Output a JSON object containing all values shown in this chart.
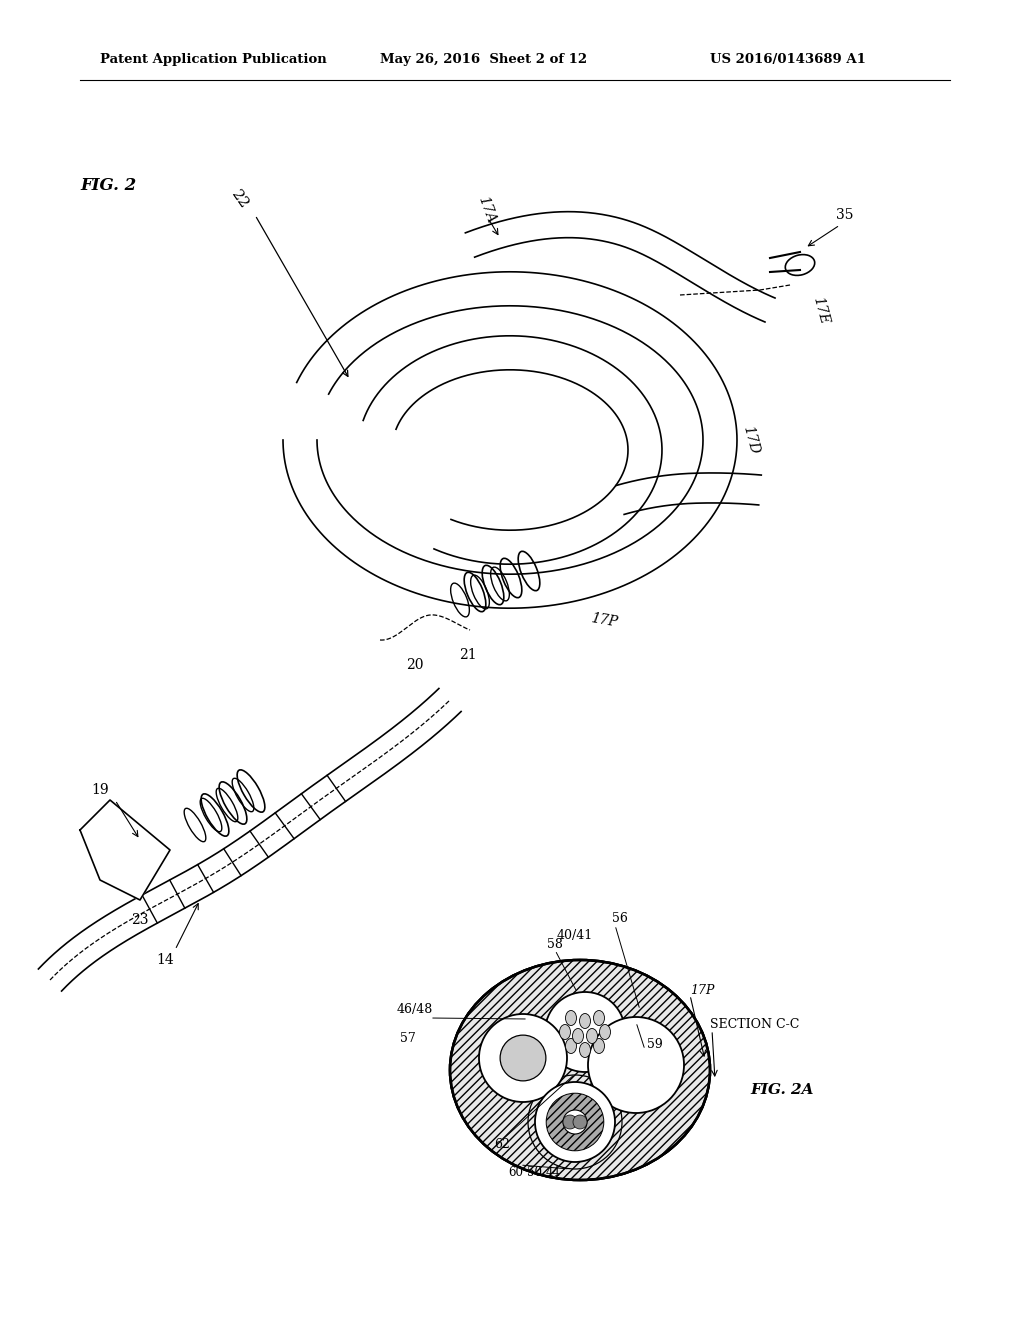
{
  "bg_color": "#ffffff",
  "header_text": "Patent Application Publication",
  "header_date": "May 26, 2016  Sheet 2 of 12",
  "header_patent": "US 2016/0143689 A1",
  "line_color": "#000000",
  "gray_color": "#aaaaaa",
  "hatch_color": "#888888"
}
